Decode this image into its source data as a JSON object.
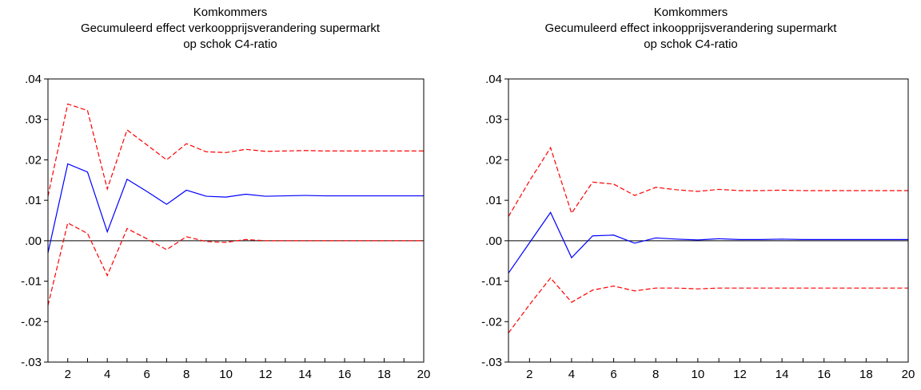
{
  "chart_data": [
    {
      "type": "line",
      "title": "Komkommers",
      "subtitle_lines": [
        "Gecumuleerd effect verkoopprijsverandering supermarkt",
        "op schok C4-ratio"
      ],
      "x": [
        1,
        2,
        3,
        4,
        5,
        6,
        7,
        8,
        9,
        10,
        11,
        12,
        13,
        14,
        15,
        16,
        17,
        18,
        19,
        20
      ],
      "xticks": [
        "2",
        "4",
        "6",
        "8",
        "10",
        "12",
        "14",
        "16",
        "18",
        "20"
      ],
      "yticks": [
        ".04",
        ".03",
        ".02",
        ".01",
        ".00",
        "-.01",
        "-.02",
        "-.03"
      ],
      "xlim": [
        1,
        20
      ],
      "ylim": [
        -0.03,
        0.04
      ],
      "zero_line": true,
      "series": [
        {
          "role": "response",
          "color": "#0000ff",
          "dash": "solid",
          "values": [
            -0.003,
            0.019,
            0.017,
            0.0022,
            0.0152,
            0.0122,
            0.009,
            0.0125,
            0.011,
            0.0108,
            0.0115,
            0.011,
            0.0111,
            0.0112,
            0.0111,
            0.0111,
            0.0111,
            0.0111,
            0.0111,
            0.0111
          ]
        },
        {
          "role": "upper-band",
          "color": "#ff0000",
          "dash": "dashed",
          "values": [
            0.011,
            0.0338,
            0.0322,
            0.0128,
            0.0274,
            0.0237,
            0.02,
            0.024,
            0.022,
            0.0218,
            0.0226,
            0.0221,
            0.0222,
            0.0223,
            0.0222,
            0.0222,
            0.0222,
            0.0222,
            0.0222,
            0.0222
          ]
        },
        {
          "role": "lower-band",
          "color": "#ff0000",
          "dash": "dashed",
          "values": [
            -0.016,
            0.0044,
            0.0018,
            -0.0086,
            0.003,
            0.0005,
            -0.0022,
            0.001,
            -0.0002,
            -0.0004,
            0.0003,
            0.0,
            0.0,
            0.0,
            0.0,
            0.0,
            0.0,
            0.0,
            0.0,
            0.0
          ]
        }
      ]
    },
    {
      "type": "line",
      "title": "Komkommers",
      "subtitle_lines": [
        "Gecumuleerd effect inkoopprijsverandering supermarkt",
        "op schok C4-ratio"
      ],
      "x": [
        1,
        2,
        3,
        4,
        5,
        6,
        7,
        8,
        9,
        10,
        11,
        12,
        13,
        14,
        15,
        16,
        17,
        18,
        19,
        20
      ],
      "xticks": [
        "2",
        "4",
        "6",
        "8",
        "10",
        "12",
        "14",
        "16",
        "18",
        "20"
      ],
      "yticks": [
        ".04",
        ".03",
        ".02",
        ".01",
        ".00",
        "-.01",
        "-.02",
        "-.03"
      ],
      "xlim": [
        1,
        20
      ],
      "ylim": [
        -0.03,
        0.04
      ],
      "zero_line": true,
      "series": [
        {
          "role": "response",
          "color": "#0000ff",
          "dash": "solid",
          "values": [
            -0.008,
            -0.0005,
            0.007,
            -0.0042,
            0.0012,
            0.0014,
            -0.0006,
            0.0007,
            0.0004,
            0.0002,
            0.0005,
            0.0003,
            0.0003,
            0.0004,
            0.0003,
            0.0003,
            0.0003,
            0.0003,
            0.0003,
            0.0003
          ]
        },
        {
          "role": "upper-band",
          "color": "#ff0000",
          "dash": "dashed",
          "values": [
            0.006,
            0.0148,
            0.023,
            0.0068,
            0.0145,
            0.014,
            0.0112,
            0.0132,
            0.0126,
            0.0122,
            0.0127,
            0.0124,
            0.0124,
            0.0125,
            0.0124,
            0.0124,
            0.0124,
            0.0124,
            0.0124,
            0.0124
          ]
        },
        {
          "role": "lower-band",
          "color": "#ff0000",
          "dash": "dashed",
          "values": [
            -0.0228,
            -0.0158,
            -0.0092,
            -0.0152,
            -0.0122,
            -0.0112,
            -0.0124,
            -0.0117,
            -0.0117,
            -0.0119,
            -0.0117,
            -0.0117,
            -0.0117,
            -0.0117,
            -0.0117,
            -0.0117,
            -0.0117,
            -0.0117,
            -0.0117,
            -0.0117
          ]
        }
      ]
    }
  ]
}
